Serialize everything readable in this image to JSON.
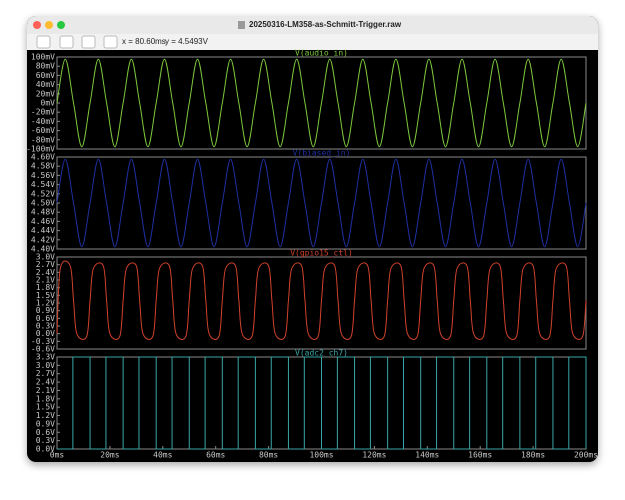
{
  "window": {
    "title": "20250316-LM358-as-Schmitt-Trigger.raw",
    "cursor_x": "x = 80.60ms",
    "cursor_y": "y = 4.5493V"
  },
  "chart_data": [
    {
      "type": "line",
      "title": "V(audio_in)",
      "color": "#7cc83c",
      "xlim": [
        0,
        200
      ],
      "ylim": [
        -100,
        100
      ],
      "yticks": [
        {
          "value": 100,
          "label": "100mV"
        },
        {
          "value": 80,
          "label": "80mV"
        },
        {
          "value": 60,
          "label": "60mV"
        },
        {
          "value": 40,
          "label": "40mV"
        },
        {
          "value": 20,
          "label": "20mV"
        },
        {
          "value": 0,
          "label": "0mV"
        },
        {
          "value": -20,
          "label": "-20mV"
        },
        {
          "value": -40,
          "label": "-40mV"
        },
        {
          "value": -60,
          "label": "-60mV"
        },
        {
          "value": -80,
          "label": "-80mV"
        },
        {
          "value": -100,
          "label": "-100mV"
        }
      ],
      "x": [
        0,
        3.125,
        6.25,
        9.375,
        12.5,
        15.625,
        18.75,
        21.875,
        25,
        28.125,
        31.25,
        34.375,
        37.5,
        40.625,
        43.75,
        46.875,
        50,
        53.125,
        56.25,
        59.375,
        62.5,
        65.625,
        68.75,
        71.875,
        75,
        78.125,
        81.25,
        84.375,
        87.5,
        90.625,
        93.75,
        96.875,
        100,
        103.125,
        106.25,
        109.375,
        112.5,
        115.625,
        118.75,
        121.875,
        125,
        128.125,
        131.25,
        134.375,
        137.5,
        140.625,
        143.75,
        146.875,
        150,
        153.125,
        156.25,
        159.375,
        162.5,
        165.625,
        168.75,
        171.875,
        175,
        178.125,
        181.25,
        184.375,
        187.5,
        190.625,
        193.75,
        196.875,
        200
      ],
      "values": [
        0,
        95,
        0,
        -95,
        0,
        95,
        0,
        -95,
        0,
        95,
        0,
        -95,
        0,
        95,
        0,
        -95,
        0,
        95,
        0,
        -95,
        0,
        95,
        0,
        -95,
        0,
        95,
        0,
        -95,
        0,
        95,
        0,
        -95,
        0,
        95,
        0,
        -95,
        0,
        95,
        0,
        -95,
        0,
        95,
        0,
        -95,
        0,
        95,
        0,
        -95,
        0,
        95,
        0,
        -95,
        0,
        95,
        0,
        -95,
        0,
        95,
        0,
        -95,
        0,
        95,
        0,
        -95,
        0
      ]
    },
    {
      "type": "line",
      "title": "V(biased_in)",
      "color": "#1e2fa0",
      "xlim": [
        0,
        200
      ],
      "ylim": [
        4.4,
        4.6
      ],
      "yticks": [
        {
          "value": 4.6,
          "label": "4.60V"
        },
        {
          "value": 4.58,
          "label": "4.58V"
        },
        {
          "value": 4.56,
          "label": "4.56V"
        },
        {
          "value": 4.54,
          "label": "4.54V"
        },
        {
          "value": 4.52,
          "label": "4.52V"
        },
        {
          "value": 4.5,
          "label": "4.50V"
        },
        {
          "value": 4.48,
          "label": "4.48V"
        },
        {
          "value": 4.46,
          "label": "4.46V"
        },
        {
          "value": 4.44,
          "label": "4.44V"
        },
        {
          "value": 4.42,
          "label": "4.42V"
        },
        {
          "value": 4.4,
          "label": "4.40V"
        }
      ],
      "x": [
        0,
        3.125,
        6.25,
        9.375,
        12.5,
        15.625,
        18.75,
        21.875,
        25,
        28.125,
        31.25,
        34.375,
        37.5,
        40.625,
        43.75,
        46.875,
        50,
        53.125,
        56.25,
        59.375,
        62.5,
        65.625,
        68.75,
        71.875,
        75,
        78.125,
        81.25,
        84.375,
        87.5,
        90.625,
        93.75,
        96.875,
        100,
        103.125,
        106.25,
        109.375,
        112.5,
        115.625,
        118.75,
        121.875,
        125,
        128.125,
        131.25,
        134.375,
        137.5,
        140.625,
        143.75,
        146.875,
        150,
        153.125,
        156.25,
        159.375,
        162.5,
        165.625,
        168.75,
        171.875,
        175,
        178.125,
        181.25,
        184.375,
        187.5,
        190.625,
        193.75,
        196.875,
        200
      ],
      "values": [
        4.5,
        4.595,
        4.5,
        4.405,
        4.5,
        4.595,
        4.5,
        4.405,
        4.5,
        4.595,
        4.5,
        4.405,
        4.5,
        4.595,
        4.5,
        4.405,
        4.5,
        4.595,
        4.5,
        4.405,
        4.5,
        4.595,
        4.5,
        4.405,
        4.5,
        4.595,
        4.5,
        4.405,
        4.5,
        4.595,
        4.5,
        4.405,
        4.5,
        4.595,
        4.5,
        4.405,
        4.5,
        4.595,
        4.5,
        4.405,
        4.5,
        4.595,
        4.5,
        4.405,
        4.5,
        4.595,
        4.5,
        4.405,
        4.5,
        4.595,
        4.5,
        4.405,
        4.5,
        4.595,
        4.5,
        4.405,
        4.5,
        4.595,
        4.5,
        4.405,
        4.5,
        4.595,
        4.5,
        4.405,
        4.5
      ]
    },
    {
      "type": "line",
      "title": "V(gpio15_ctl)",
      "color": "#d0422c",
      "xlim": [
        0,
        200
      ],
      "ylim": [
        -0.6,
        3.0
      ],
      "yticks": [
        {
          "value": 3.0,
          "label": "3.0V"
        },
        {
          "value": 2.7,
          "label": "2.7V"
        },
        {
          "value": 2.4,
          "label": "2.4V"
        },
        {
          "value": 2.1,
          "label": "2.1V"
        },
        {
          "value": 1.8,
          "label": "1.8V"
        },
        {
          "value": 1.5,
          "label": "1.5V"
        },
        {
          "value": 1.2,
          "label": "1.2V"
        },
        {
          "value": 0.9,
          "label": "0.9V"
        },
        {
          "value": 0.6,
          "label": "0.6V"
        },
        {
          "value": 0.3,
          "label": "0.3V"
        },
        {
          "value": 0,
          "label": "0.0V"
        },
        {
          "value": -0.3,
          "label": "-0.3V"
        },
        {
          "value": -0.6,
          "label": "-0.6V"
        }
      ],
      "x": [
        0,
        1.25,
        5,
        6.25,
        7.5,
        11.25,
        12.5,
        13.75,
        17.5,
        18.75,
        20,
        23.75,
        25,
        26.25,
        30,
        31.25,
        32.5,
        36.25,
        37.5,
        38.75,
        42.5,
        43.75,
        45,
        48.75,
        50,
        51.25,
        55,
        56.25,
        57.5,
        61.25,
        62.5,
        63.75,
        67.5,
        68.75,
        70,
        73.75,
        75,
        76.25,
        80,
        81.25,
        82.5,
        86.25,
        87.5,
        88.75,
        92.5,
        93.75,
        95,
        98.75,
        100,
        101.25,
        105,
        106.25,
        107.5,
        111.25,
        112.5,
        113.75,
        117.5,
        118.75,
        120,
        123.75,
        125,
        126.25,
        130,
        131.25,
        132.5,
        136.25,
        137.5,
        138.75,
        142.5,
        143.75,
        145,
        148.75,
        150,
        151.25,
        155,
        156.25,
        157.5,
        161.25,
        162.5,
        163.75,
        167.5,
        168.75,
        170,
        173.75,
        175,
        176.25,
        180,
        181.25,
        182.5,
        186.25,
        187.5,
        188.75,
        192.5,
        193.75,
        195,
        198.75,
        200
      ],
      "values": [
        0,
        2.55,
        2.65,
        1.3,
        0,
        -0.1,
        1.3,
        2.55,
        2.65,
        1.3,
        0,
        -0.1,
        1.3,
        2.55,
        2.65,
        1.3,
        0,
        -0.1,
        1.3,
        2.55,
        2.65,
        1.3,
        0,
        -0.1,
        1.3,
        2.55,
        2.65,
        1.3,
        0,
        -0.1,
        1.3,
        2.55,
        2.65,
        1.3,
        0,
        -0.1,
        1.3,
        2.55,
        2.65,
        1.3,
        0,
        -0.1,
        1.3,
        2.55,
        2.65,
        1.3,
        0,
        -0.1,
        1.3,
        2.55,
        2.65,
        1.3,
        0,
        -0.1,
        1.3,
        2.55,
        2.65,
        1.3,
        0,
        -0.1,
        1.3,
        2.55,
        2.65,
        1.3,
        0,
        -0.1,
        1.3,
        2.55,
        2.65,
        1.3,
        0,
        -0.1,
        1.3,
        2.55,
        2.65,
        1.3,
        0,
        -0.1,
        1.3,
        2.55,
        2.65,
        1.3,
        0,
        -0.1,
        1.3,
        2.55,
        2.65,
        1.3,
        0,
        -0.1,
        1.3,
        2.55,
        2.65,
        1.3,
        0,
        -0.1,
        1.3
      ]
    },
    {
      "type": "step",
      "title": "V(adc2_ch7)",
      "color": "#3aa6a6",
      "xlim": [
        0,
        200
      ],
      "ylim": [
        0,
        3.3
      ],
      "yticks": [
        {
          "value": 3.3,
          "label": "3.3V"
        },
        {
          "value": 3.0,
          "label": "3.0V"
        },
        {
          "value": 2.7,
          "label": "2.7V"
        },
        {
          "value": 2.4,
          "label": "2.4V"
        },
        {
          "value": 2.1,
          "label": "2.1V"
        },
        {
          "value": 1.8,
          "label": "1.8V"
        },
        {
          "value": 1.5,
          "label": "1.5V"
        },
        {
          "value": 1.2,
          "label": "1.2V"
        },
        {
          "value": 0.9,
          "label": "0.9V"
        },
        {
          "value": 0.6,
          "label": "0.6V"
        },
        {
          "value": 0.3,
          "label": "0.3V"
        },
        {
          "value": 0,
          "label": "0.0V"
        }
      ],
      "xticks": [
        {
          "value": 0,
          "label": "0ms"
        },
        {
          "value": 20,
          "label": "20ms"
        },
        {
          "value": 40,
          "label": "40ms"
        },
        {
          "value": 60,
          "label": "60ms"
        },
        {
          "value": 80,
          "label": "80ms"
        },
        {
          "value": 100,
          "label": "100ms"
        },
        {
          "value": 120,
          "label": "120ms"
        },
        {
          "value": 140,
          "label": "140ms"
        },
        {
          "value": 160,
          "label": "160ms"
        },
        {
          "value": 180,
          "label": "180ms"
        },
        {
          "value": 200,
          "label": "200ms"
        }
      ],
      "x": [
        0,
        6,
        12.5,
        18.5,
        25,
        31,
        37.5,
        43.5,
        50,
        56,
        62.5,
        68.5,
        75,
        81,
        87.5,
        93.5,
        100,
        106,
        112.5,
        118.5,
        125,
        131,
        137.5,
        143.5,
        150,
        156,
        162.5,
        168.5,
        175,
        181,
        187.5,
        193.5,
        200
      ],
      "values": [
        0,
        3.3,
        0,
        3.3,
        0,
        3.3,
        0,
        3.3,
        0,
        3.3,
        0,
        3.3,
        0,
        3.3,
        0,
        3.3,
        0,
        3.3,
        0,
        3.3,
        0,
        3.3,
        0,
        3.3,
        0,
        3.3,
        0,
        3.3,
        0,
        3.3,
        0,
        3.3,
        0
      ]
    }
  ]
}
